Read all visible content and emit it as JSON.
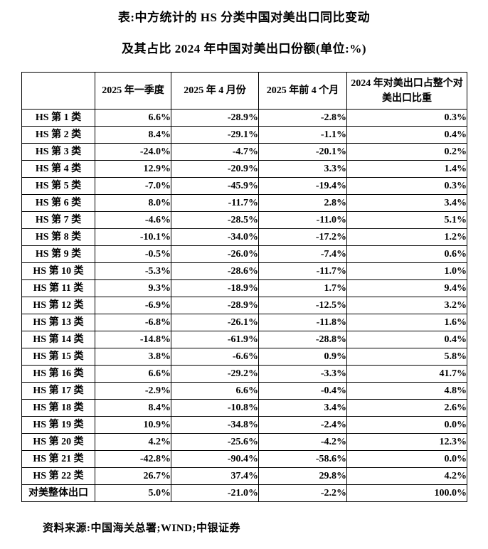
{
  "page": {
    "title_line1": "表:中方统计的 HS 分类中国对美出口同比变动",
    "title_line2": "及其占比 2024 年中国对美出口份额(单位:%)",
    "source_note": "资料来源:中国海关总署;WIND;中银证券"
  },
  "colors": {
    "text": "#000000",
    "border": "#000000",
    "background": "#ffffff"
  },
  "table": {
    "headers": [
      "",
      "2025 年一季度",
      "2025 年 4 月份",
      "2025 年前 4 个月",
      "2024 年对美出口占整个对美出口比重"
    ],
    "rows": [
      {
        "label": "HS 第 1 类",
        "values": [
          "6.6%",
          "-28.9%",
          "-2.8%",
          "0.3%"
        ]
      },
      {
        "label": "HS 第 2 类",
        "values": [
          "8.4%",
          "-29.1%",
          "-1.1%",
          "0.4%"
        ]
      },
      {
        "label": "HS 第 3 类",
        "values": [
          "-24.0%",
          "-4.7%",
          "-20.1%",
          "0.2%"
        ]
      },
      {
        "label": "HS 第 4 类",
        "values": [
          "12.9%",
          "-20.9%",
          "3.3%",
          "1.4%"
        ]
      },
      {
        "label": "HS 第 5 类",
        "values": [
          "-7.0%",
          "-45.9%",
          "-19.4%",
          "0.3%"
        ]
      },
      {
        "label": "HS 第 6 类",
        "values": [
          "8.0%",
          "-11.7%",
          "2.8%",
          "3.4%"
        ]
      },
      {
        "label": "HS 第 7 类",
        "values": [
          "-4.6%",
          "-28.5%",
          "-11.0%",
          "5.1%"
        ]
      },
      {
        "label": "HS 第 8 类",
        "values": [
          "-10.1%",
          "-34.0%",
          "-17.2%",
          "1.2%"
        ]
      },
      {
        "label": "HS 第 9 类",
        "values": [
          "-0.5%",
          "-26.0%",
          "-7.4%",
          "0.6%"
        ]
      },
      {
        "label": "HS 第 10 类",
        "values": [
          "-5.3%",
          "-28.6%",
          "-11.7%",
          "1.0%"
        ]
      },
      {
        "label": "HS 第 11 类",
        "values": [
          "9.3%",
          "-18.9%",
          "1.7%",
          "9.4%"
        ]
      },
      {
        "label": "HS 第 12 类",
        "values": [
          "-6.9%",
          "-28.9%",
          "-12.5%",
          "3.2%"
        ]
      },
      {
        "label": "HS 第 13 类",
        "values": [
          "-6.8%",
          "-26.1%",
          "-11.8%",
          "1.6%"
        ]
      },
      {
        "label": "HS 第 14 类",
        "values": [
          "-14.8%",
          "-61.9%",
          "-28.8%",
          "0.4%"
        ]
      },
      {
        "label": "HS 第 15 类",
        "values": [
          "3.8%",
          "-6.6%",
          "0.9%",
          "5.8%"
        ]
      },
      {
        "label": "HS 第 16 类",
        "values": [
          "6.6%",
          "-29.2%",
          "-3.3%",
          "41.7%"
        ]
      },
      {
        "label": "HS 第 17 类",
        "values": [
          "-2.9%",
          "6.6%",
          "-0.4%",
          "4.8%"
        ]
      },
      {
        "label": "HS 第 18 类",
        "values": [
          "8.4%",
          "-10.8%",
          "3.4%",
          "2.6%"
        ]
      },
      {
        "label": "HS 第 19 类",
        "values": [
          "10.9%",
          "-34.8%",
          "-2.4%",
          "0.0%"
        ]
      },
      {
        "label": "HS 第 20 类",
        "values": [
          "4.2%",
          "-25.6%",
          "-4.2%",
          "12.3%"
        ]
      },
      {
        "label": "HS 第 21 类",
        "values": [
          "-42.8%",
          "-90.4%",
          "-58.6%",
          "0.0%"
        ]
      },
      {
        "label": "HS 第 22 类",
        "values": [
          "26.7%",
          "37.4%",
          "29.8%",
          "4.2%"
        ]
      },
      {
        "label": "对美整体出口",
        "values": [
          "5.0%",
          "-21.0%",
          "-2.2%",
          "100.0%"
        ]
      }
    ]
  }
}
